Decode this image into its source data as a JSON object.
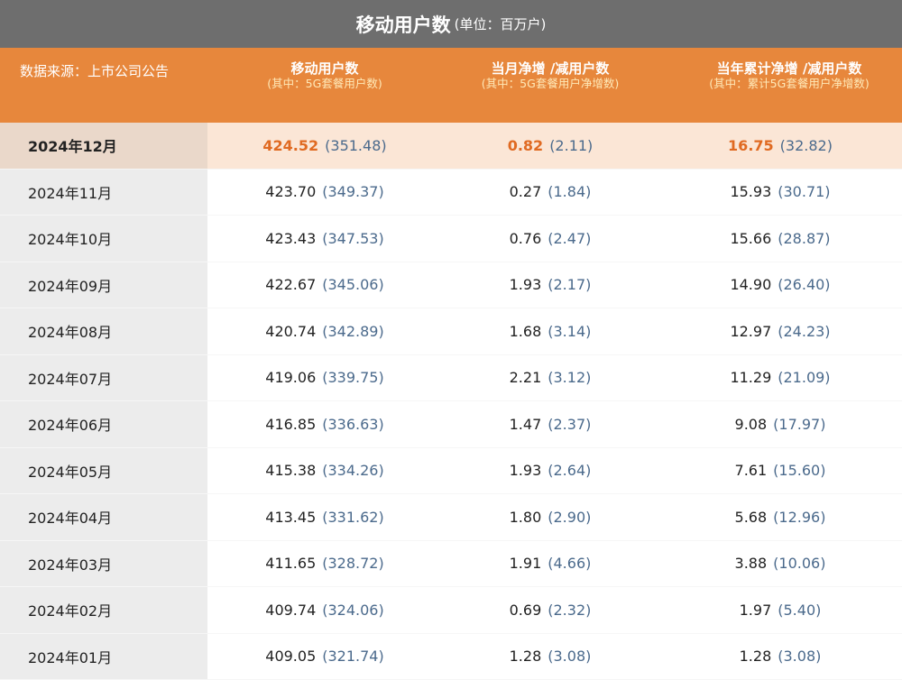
{
  "title": {
    "main": "移动用户数",
    "unit": "(单位：百万户)"
  },
  "header": {
    "source": "数据来源：上市公司公告",
    "col1": {
      "main": "移动用户数",
      "sub": "(其中：5G套餐用户数)"
    },
    "col2": {
      "main": "当月净增 /减用户数",
      "sub": "(其中：5G套餐用户净增数)"
    },
    "col3": {
      "main": "当年累计净增 /减用户数",
      "sub": "(其中：累计5G套餐用户净增数)"
    }
  },
  "rows": [
    {
      "date": "2024年12月",
      "c1": "424.52",
      "c1p": "(351.48)",
      "c2": "0.82",
      "c2p": "(2.11)",
      "c3": "16.75",
      "c3p": "(32.82)"
    },
    {
      "date": "2024年11月",
      "c1": "423.70",
      "c1p": "(349.37)",
      "c2": "0.27",
      "c2p": "(1.84)",
      "c3": "15.93",
      "c3p": "(30.71)"
    },
    {
      "date": "2024年10月",
      "c1": "423.43",
      "c1p": "(347.53)",
      "c2": "0.76",
      "c2p": "(2.47)",
      "c3": "15.66",
      "c3p": "(28.87)"
    },
    {
      "date": "2024年09月",
      "c1": "422.67",
      "c1p": "(345.06)",
      "c2": "1.93",
      "c2p": "(2.17)",
      "c3": "14.90",
      "c3p": "(26.40)"
    },
    {
      "date": "2024年08月",
      "c1": "420.74",
      "c1p": "(342.89)",
      "c2": "1.68",
      "c2p": "(3.14)",
      "c3": "12.97",
      "c3p": "(24.23)"
    },
    {
      "date": "2024年07月",
      "c1": "419.06",
      "c1p": "(339.75)",
      "c2": "2.21",
      "c2p": "(3.12)",
      "c3": "11.29",
      "c3p": "(21.09)"
    },
    {
      "date": "2024年06月",
      "c1": "416.85",
      "c1p": "(336.63)",
      "c2": "1.47",
      "c2p": "(2.37)",
      "c3": "9.08",
      "c3p": "(17.97)"
    },
    {
      "date": "2024年05月",
      "c1": "415.38",
      "c1p": "(334.26)",
      "c2": "1.93",
      "c2p": "(2.64)",
      "c3": "7.61",
      "c3p": "(15.60)"
    },
    {
      "date": "2024年04月",
      "c1": "413.45",
      "c1p": "(331.62)",
      "c2": "1.80",
      "c2p": "(2.90)",
      "c3": "5.68",
      "c3p": "(12.96)"
    },
    {
      "date": "2024年03月",
      "c1": "411.65",
      "c1p": "(328.72)",
      "c2": "1.91",
      "c2p": "(4.66)",
      "c3": "3.88",
      "c3p": "(10.06)"
    },
    {
      "date": "2024年02月",
      "c1": "409.74",
      "c1p": "(324.06)",
      "c2": "0.69",
      "c2p": "(2.32)",
      "c3": "1.97",
      "c3p": "(5.40)"
    },
    {
      "date": "2024年01月",
      "c1": "409.05",
      "c1p": "(321.74)",
      "c2": "1.28",
      "c2p": "(3.08)",
      "c3": "1.28",
      "c3p": "(3.08)"
    }
  ],
  "colors": {
    "title_bg": "#6e6e6e",
    "header_bg": "#e7873c",
    "highlight_value": "#e06a22",
    "paren_value": "#4b6a8c"
  }
}
